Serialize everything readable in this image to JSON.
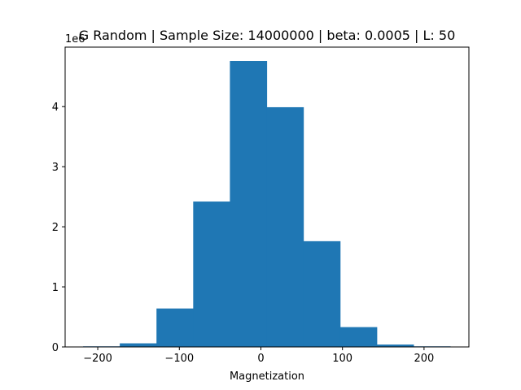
{
  "chart_data": {
    "type": "bar",
    "title": "G Random | Sample Size: 14000000 | beta: 0.0005 | L: 50",
    "xlabel": "Magnetization",
    "ylabel": "",
    "y_offset_label": "1e6",
    "xlim": [
      -240,
      255
    ],
    "ylim": [
      0,
      4.99
    ],
    "x_ticks": [
      -200,
      -100,
      0,
      100,
      200
    ],
    "x_tick_labels": [
      "−200",
      "−100",
      "0",
      "100",
      "200"
    ],
    "y_ticks": [
      0,
      1,
      2,
      3,
      4
    ],
    "y_tick_labels": [
      "0",
      "1",
      "2",
      "3",
      "4"
    ],
    "bin_edges": [
      -218,
      -173,
      -128,
      -83,
      -38,
      7,
      52,
      97,
      142,
      187,
      232
    ],
    "values": [
      0.01,
      0.06,
      0.64,
      2.42,
      4.76,
      3.99,
      1.76,
      0.33,
      0.04,
      0.01
    ],
    "value_scale": 1000000,
    "bar_color": "#1f77b4",
    "grid": false
  }
}
